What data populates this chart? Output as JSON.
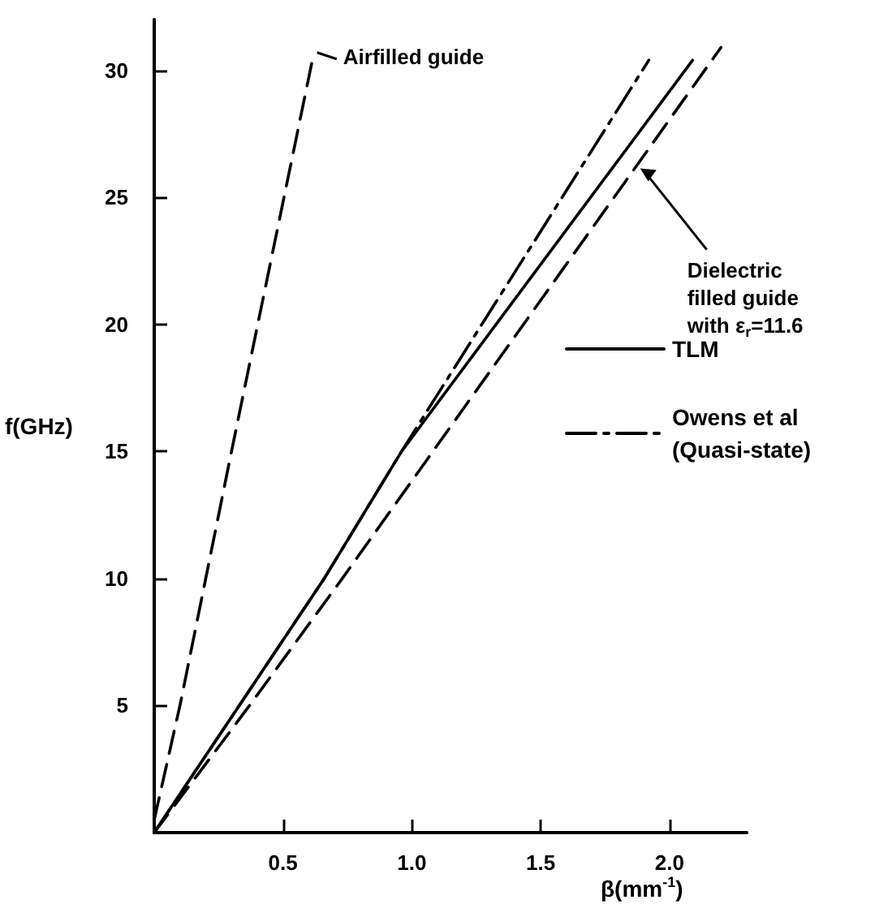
{
  "chart_data": {
    "type": "line",
    "xlabel": "β(mm$^{-1}$)",
    "ylabel": "f(GHz)",
    "xlim": [
      0,
      2.3
    ],
    "ylim": [
      0,
      32
    ],
    "xticks": [
      0.5,
      {
        "value": 1,
        "label": "1.0"
      },
      1.5,
      {
        "value": 2,
        "label": "2.0"
      }
    ],
    "yticks": [
      5,
      10,
      15,
      20,
      25,
      30
    ],
    "grid": false,
    "legend": "right",
    "marker": "none",
    "series": [
      {
        "name": "TLM",
        "color": "#000000",
        "line_style": "solid",
        "x": [
          0,
          0.33,
          0.66,
          0.96,
          2.09
        ],
        "values": [
          0,
          5,
          10,
          15,
          30.4
        ]
      },
      {
        "name": "Owens et al (Quasi-state)",
        "color": "#000000",
        "line_style": "dashdot",
        "x": [
          0,
          0.33,
          0.66,
          0.96,
          1.92
        ],
        "values": [
          0,
          5,
          10,
          15,
          30.4
        ]
      },
      {
        "color": "#000000",
        "line_style": "dashed",
        "x": [
          0,
          0.37,
          0.73,
          2.2
        ],
        "values": [
          0,
          5,
          10,
          30.9
        ]
      },
      {
        "color": "#000000",
        "line_style": "dashed",
        "x": [
          0,
          0.1,
          0.3,
          0.62
        ],
        "values": [
          0.5,
          5,
          15,
          30.7
        ]
      }
    ],
    "annotations": [
      {
        "text": "Airfilled guide",
        "x": 0.62,
        "y": 30.7
      },
      {
        "text": "Dielectric filled guide with ε$_{r}$=11.6",
        "x": 1.88,
        "y": 26.2
      }
    ]
  }
}
